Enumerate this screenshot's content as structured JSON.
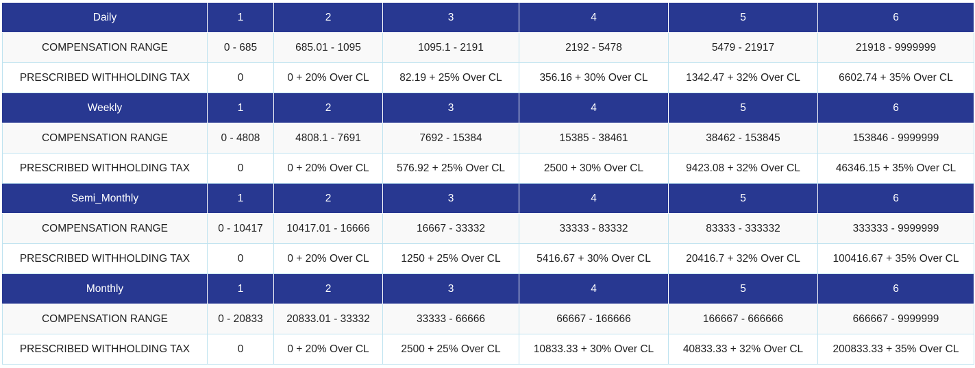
{
  "sections": [
    {
      "period": "Daily",
      "brackets": [
        "1",
        "2",
        "3",
        "4",
        "5",
        "6"
      ],
      "range_label": "COMPENSATION RANGE",
      "ranges": [
        "0 - 685",
        "685.01 - 1095",
        "1095.1 - 2191",
        "2192 - 5478",
        "5479 - 21917",
        "21918 - 9999999"
      ],
      "tax_label": "PRESCRIBED WITHHOLDING TAX",
      "taxes": [
        "0",
        "0 + 20% Over CL",
        "82.19 + 25% Over CL",
        "356.16 + 30% Over CL",
        "1342.47 + 32% Over CL",
        "6602.74 + 35% Over CL"
      ]
    },
    {
      "period": "Weekly",
      "brackets": [
        "1",
        "2",
        "3",
        "4",
        "5",
        "6"
      ],
      "range_label": "COMPENSATION RANGE",
      "ranges": [
        "0 - 4808",
        "4808.1 - 7691",
        "7692 - 15384",
        "15385 - 38461",
        "38462 - 153845",
        "153846 - 9999999"
      ],
      "tax_label": "PRESCRIBED WITHHOLDING TAX",
      "taxes": [
        "0",
        "0 + 20% Over CL",
        "576.92 + 25% Over CL",
        "2500 + 30% Over CL",
        "9423.08 + 32% Over CL",
        "46346.15 + 35% Over CL"
      ]
    },
    {
      "period": "Semi_Monthly",
      "brackets": [
        "1",
        "2",
        "3",
        "4",
        "5",
        "6"
      ],
      "range_label": "COMPENSATION RANGE",
      "ranges": [
        "0 - 10417",
        "10417.01 - 16666",
        "16667 - 33332",
        "33333 - 83332",
        "83333 - 333332",
        "333333 - 9999999"
      ],
      "tax_label": "PRESCRIBED WITHHOLDING TAX",
      "taxes": [
        "0",
        "0 + 20% Over CL",
        "1250 + 25% Over CL",
        "5416.67 + 30% Over CL",
        "20416.7 + 32% Over CL",
        "100416.67 + 35% Over CL"
      ]
    },
    {
      "period": "Monthly",
      "brackets": [
        "1",
        "2",
        "3",
        "4",
        "5",
        "6"
      ],
      "range_label": "COMPENSATION RANGE",
      "ranges": [
        "0 - 20833",
        "20833.01 - 33332",
        "33333 - 66666",
        "66667 - 166666",
        "166667 - 666666",
        "666667 - 9999999"
      ],
      "tax_label": "PRESCRIBED WITHHOLDING TAX",
      "taxes": [
        "0",
        "0 + 20% Over CL",
        "2500 + 25% Over CL",
        "10833.33 + 30% Over CL",
        "40833.33 + 32% Over CL",
        "200833.33 + 35% Over CL"
      ]
    }
  ],
  "colors": {
    "header_bg": "#283891",
    "header_text": "#ffffff",
    "border": "#bfe3f0",
    "range_row_bg": "#f9f9f9"
  }
}
